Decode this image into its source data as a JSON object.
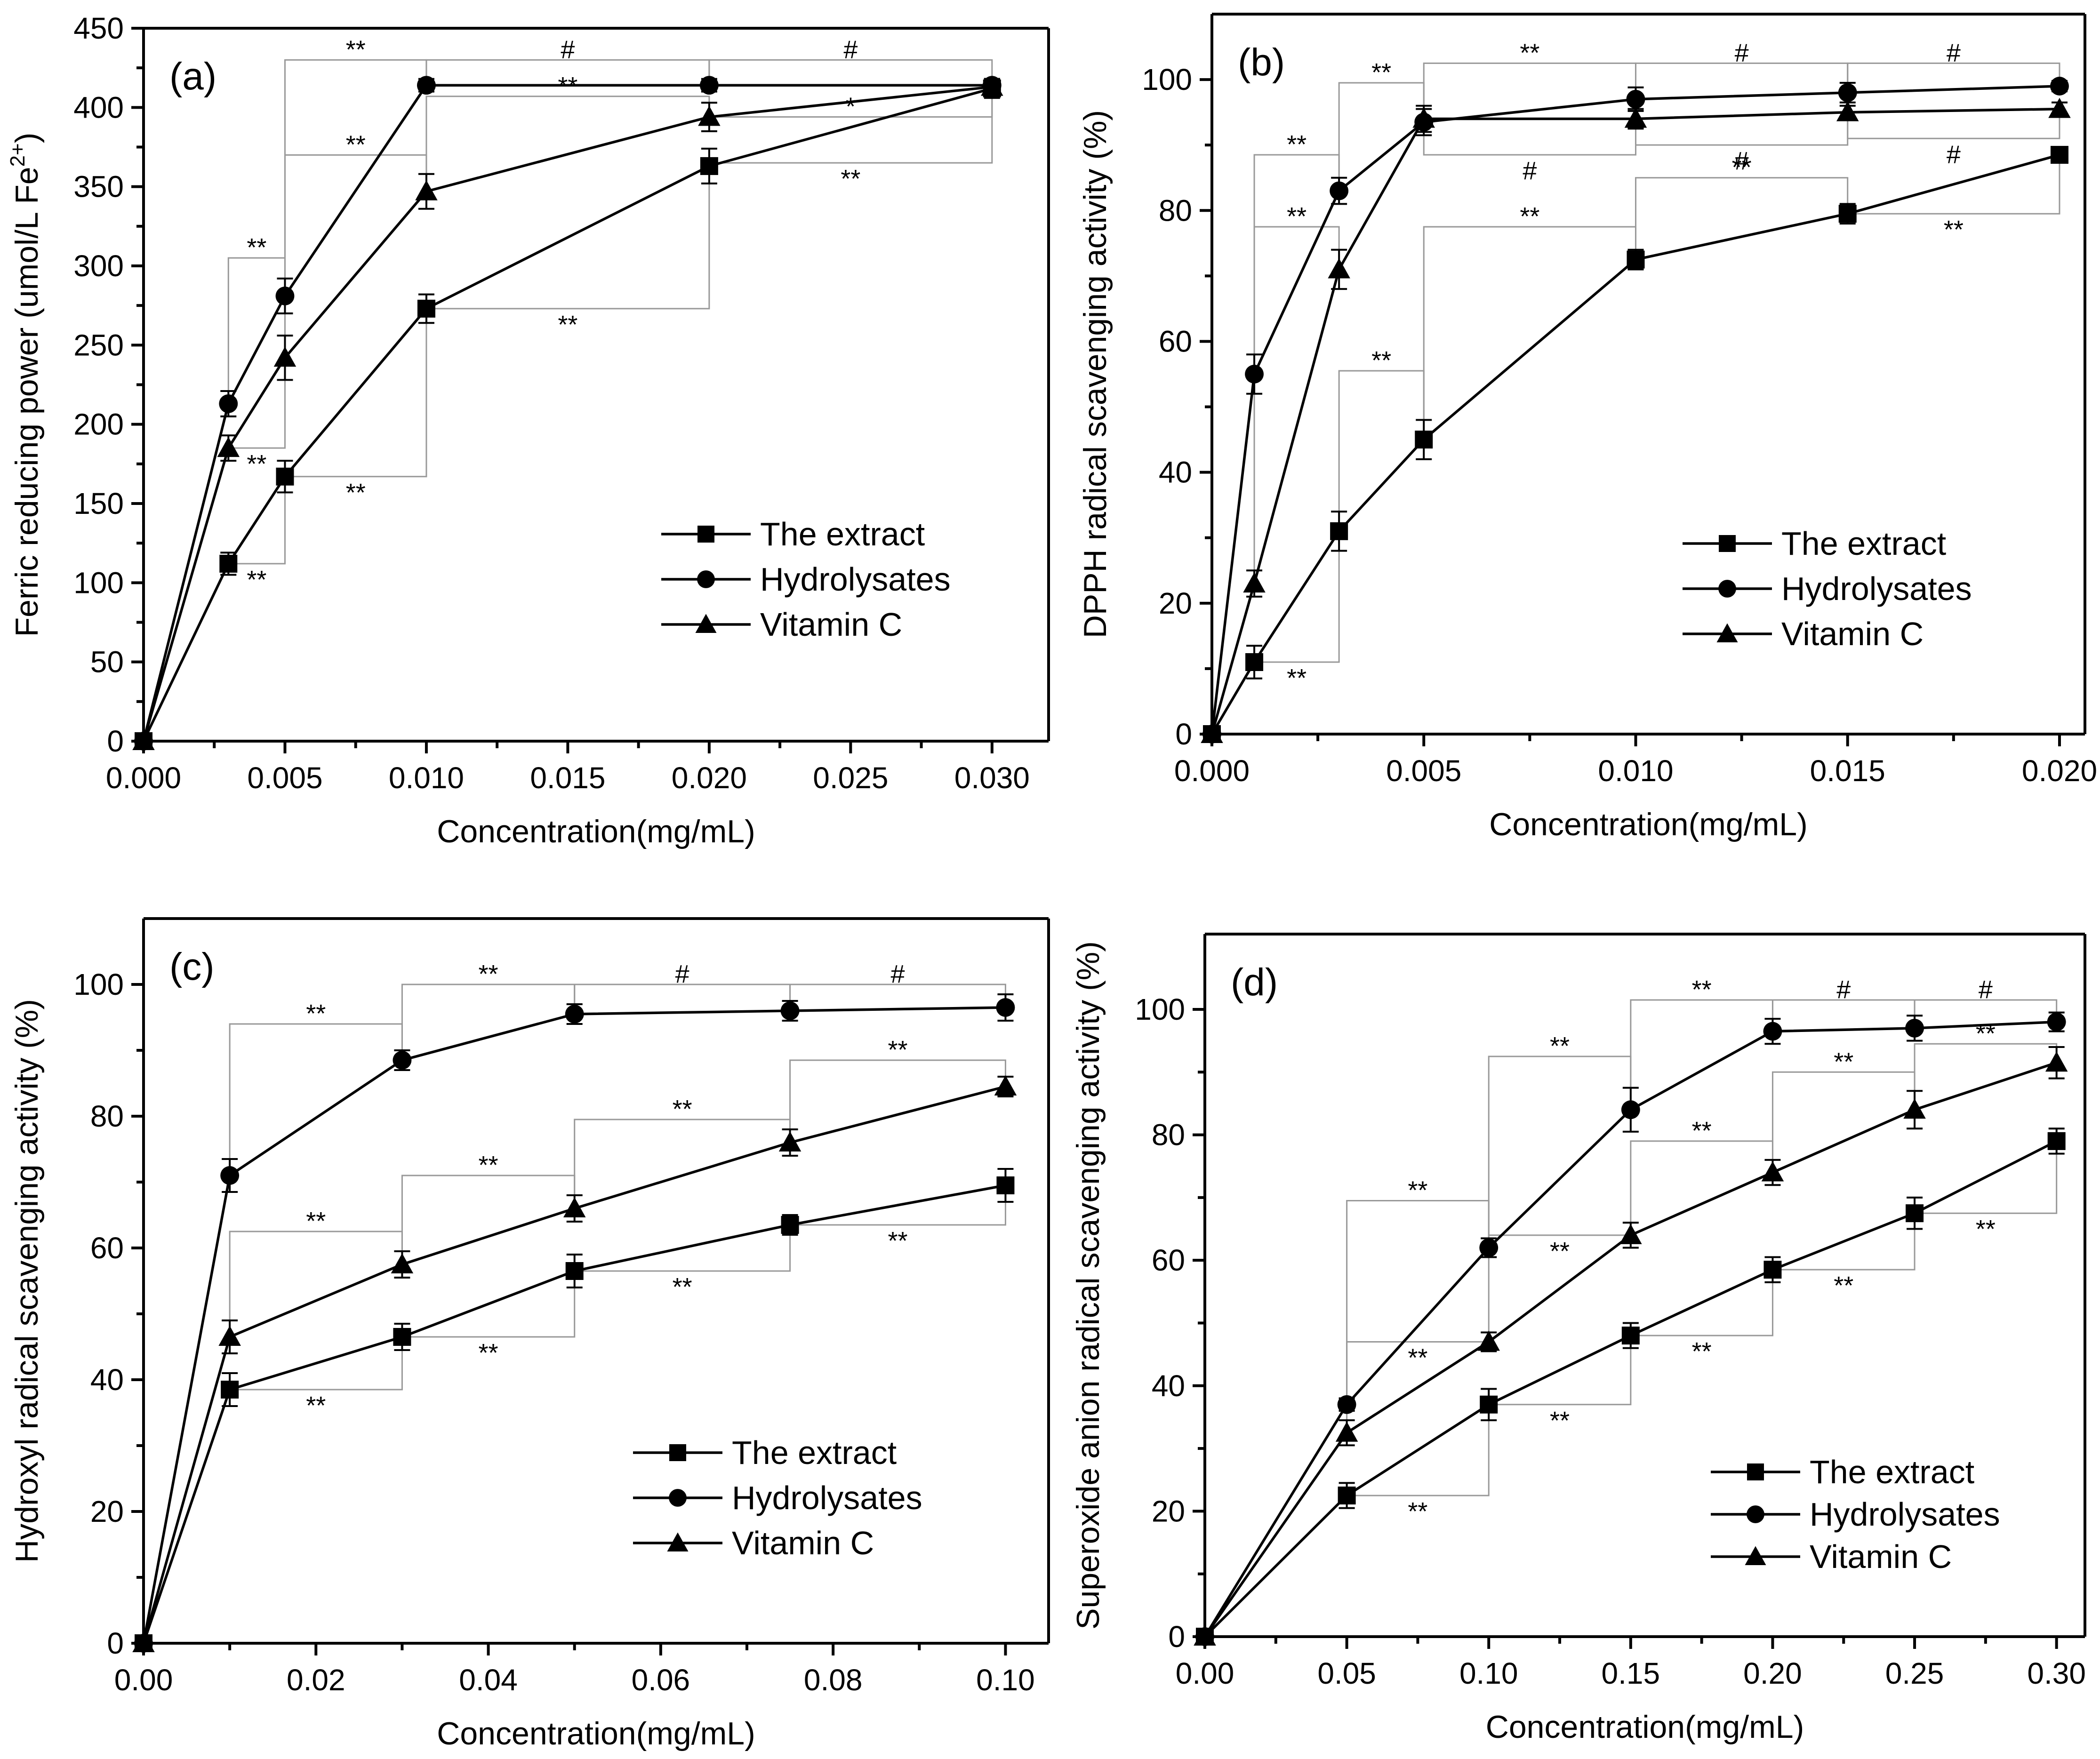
{
  "chart_data": [
    {
      "panel_label": "(a)",
      "type": "line",
      "xlabel": "Concentration(mg/mL)",
      "ylabel_main": "Ferric reducing power (umol/L Fe",
      "ylabel_sup": "2+",
      "ylabel_close": ")",
      "xlim": [
        0,
        0.032
      ],
      "ylim": [
        0,
        450
      ],
      "xticks": [
        0.0,
        0.005,
        0.01,
        0.015,
        0.02,
        0.025,
        0.03
      ],
      "xtick_labels": [
        "0.000",
        "0.005",
        "0.010",
        "0.015",
        "0.020",
        "0.025",
        "0.030"
      ],
      "yticks": [
        0,
        50,
        100,
        150,
        200,
        250,
        300,
        350,
        400,
        450
      ],
      "ytick_labels": [
        "0",
        "50",
        "100",
        "150",
        "200",
        "250",
        "300",
        "350",
        "400",
        "450"
      ],
      "legend_position": "lower-right",
      "series": [
        {
          "name": "The extract",
          "marker": "square",
          "x": [
            0,
            0.003,
            0.005,
            0.01,
            0.02,
            0.03
          ],
          "values": [
            0,
            112,
            167,
            273,
            363,
            412
          ],
          "errors": [
            0,
            7,
            10,
            9,
            11,
            6
          ]
        },
        {
          "name": "Hydrolysates",
          "marker": "circle",
          "x": [
            0,
            0.003,
            0.005,
            0.01,
            0.02,
            0.03
          ],
          "values": [
            0,
            213,
            281,
            414,
            414,
            414
          ],
          "errors": [
            0,
            8,
            11,
            4,
            4,
            4
          ]
        },
        {
          "name": "Vitamin C",
          "marker": "triangle",
          "x": [
            0,
            0.003,
            0.005,
            0.01,
            0.02,
            0.03
          ],
          "values": [
            0,
            185,
            242,
            347,
            394,
            413
          ],
          "errors": [
            0,
            8,
            14,
            11,
            9,
            5
          ]
        }
      ],
      "brackets": [
        {
          "x1": 0.003,
          "x2": 0.005,
          "y1": 213,
          "y2": 281,
          "yb": 305,
          "label": "**",
          "side": "above"
        },
        {
          "x1": 0.005,
          "x2": 0.01,
          "y1": 281,
          "y2": 414,
          "yb": 430,
          "label": "**",
          "side": "above"
        },
        {
          "x1": 0.01,
          "x2": 0.02,
          "y1": 414,
          "y2": 414,
          "yb": 430,
          "label": "#",
          "side": "above"
        },
        {
          "x1": 0.02,
          "x2": 0.03,
          "y1": 414,
          "y2": 414,
          "yb": 430,
          "label": "#",
          "side": "above"
        },
        {
          "x1": 0.005,
          "x2": 0.01,
          "y1": 242,
          "y2": 347,
          "yb": 370,
          "label": "**",
          "side": "above"
        },
        {
          "x1": 0.01,
          "x2": 0.02,
          "y1": 347,
          "y2": 394,
          "yb": 407,
          "label": "**",
          "side": "above"
        },
        {
          "x1": 0.02,
          "x2": 0.03,
          "y1": 394,
          "y2": 413,
          "yb": 394,
          "label": "*",
          "side": "above"
        },
        {
          "x1": 0.003,
          "x2": 0.005,
          "y1": 185,
          "y2": 242,
          "yb": 185,
          "label": "**",
          "side": "below"
        },
        {
          "x1": 0.003,
          "x2": 0.005,
          "y1": 112,
          "y2": 167,
          "yb": 112,
          "label": "**",
          "side": "below"
        },
        {
          "x1": 0.005,
          "x2": 0.01,
          "y1": 167,
          "y2": 273,
          "yb": 167,
          "label": "**",
          "side": "below"
        },
        {
          "x1": 0.01,
          "x2": 0.02,
          "y1": 273,
          "y2": 363,
          "yb": 273,
          "label": "**",
          "side": "below"
        },
        {
          "x1": 0.02,
          "x2": 0.03,
          "y1": 363,
          "y2": 412,
          "yb": 365,
          "label": "**",
          "side": "below"
        }
      ]
    },
    {
      "panel_label": "(b)",
      "type": "line",
      "xlabel": "Concentration(mg/mL)",
      "ylabel_main": "DPPH radical scavenging activity (%)",
      "ylabel_sup": "",
      "ylabel_close": "",
      "xlim": [
        0,
        0.0206
      ],
      "ylim": [
        0,
        110
      ],
      "xticks": [
        0.0,
        0.005,
        0.01,
        0.015,
        0.02
      ],
      "xtick_labels": [
        "0.000",
        "0.005",
        "0.010",
        "0.015",
        "0.020"
      ],
      "yticks": [
        0,
        20,
        40,
        60,
        80,
        100
      ],
      "ytick_labels": [
        "0",
        "20",
        "40",
        "60",
        "80",
        "100"
      ],
      "legend_position": "lower-right",
      "series": [
        {
          "name": "The extract",
          "marker": "square",
          "x": [
            0,
            0.001,
            0.003,
            0.005,
            0.01,
            0.015,
            0.02
          ],
          "values": [
            0,
            11,
            31,
            45,
            72.5,
            79.5,
            88.5
          ],
          "errors": [
            0,
            2.5,
            3,
            3,
            1.5,
            1.5,
            0.5
          ]
        },
        {
          "name": "Hydrolysates",
          "marker": "circle",
          "x": [
            0,
            0.001,
            0.003,
            0.005,
            0.01,
            0.015,
            0.02
          ],
          "values": [
            0,
            55,
            83,
            93.5,
            97,
            98,
            99
          ],
          "errors": [
            0,
            3,
            2,
            2,
            1.8,
            1.5,
            0.8
          ]
        },
        {
          "name": "Vitamin C",
          "marker": "triangle",
          "x": [
            0,
            0.001,
            0.003,
            0.005,
            0.01,
            0.015,
            0.02
          ],
          "values": [
            0,
            23,
            71,
            94,
            94,
            95,
            95.5
          ],
          "errors": [
            0,
            2,
            3,
            2,
            1.5,
            1,
            1
          ]
        }
      ],
      "brackets": [
        {
          "x1": 0.003,
          "x2": 0.005,
          "y1": 83,
          "y2": 93.5,
          "yb": 99.5,
          "label": "**",
          "side": "above"
        },
        {
          "x1": 0.005,
          "x2": 0.01,
          "y1": 93.5,
          "y2": 97,
          "yb": 102.5,
          "label": "**",
          "side": "above"
        },
        {
          "x1": 0.01,
          "x2": 0.015,
          "y1": 97,
          "y2": 98,
          "yb": 102.5,
          "label": "#",
          "side": "above"
        },
        {
          "x1": 0.015,
          "x2": 0.02,
          "y1": 98,
          "y2": 99,
          "yb": 102.5,
          "label": "#",
          "side": "above"
        },
        {
          "x1": 0.001,
          "x2": 0.003,
          "y1": 55,
          "y2": 83,
          "yb": 88.5,
          "label": "**",
          "side": "above"
        },
        {
          "x1": 0.001,
          "x2": 0.003,
          "y1": 23,
          "y2": 71,
          "yb": 77.5,
          "label": "**",
          "side": "above"
        },
        {
          "x1": 0.005,
          "x2": 0.01,
          "y1": 94,
          "y2": 94,
          "yb": 88.5,
          "label": "#",
          "side": "below"
        },
        {
          "x1": 0.01,
          "x2": 0.015,
          "y1": 94,
          "y2": 95,
          "yb": 90,
          "label": "#",
          "side": "below"
        },
        {
          "x1": 0.015,
          "x2": 0.02,
          "y1": 95,
          "y2": 95.5,
          "yb": 91,
          "label": "#",
          "side": "below"
        },
        {
          "x1": 0.01,
          "x2": 0.015,
          "y1": 72.5,
          "y2": 79.5,
          "yb": 85,
          "label": "**",
          "side": "above"
        },
        {
          "x1": 0.015,
          "x2": 0.02,
          "y1": 79.5,
          "y2": 88.5,
          "yb": 79.5,
          "label": "**",
          "side": "below"
        },
        {
          "x1": 0.005,
          "x2": 0.01,
          "y1": 45,
          "y2": 72.5,
          "yb": 77.5,
          "label": "**",
          "side": "above"
        },
        {
          "x1": 0.003,
          "x2": 0.005,
          "y1": 31,
          "y2": 45,
          "yb": 55.5,
          "label": "**",
          "side": "above"
        },
        {
          "x1": 0.001,
          "x2": 0.003,
          "y1": 11,
          "y2": 31,
          "yb": 11,
          "label": "**",
          "side": "below"
        }
      ]
    },
    {
      "panel_label": "(c)",
      "type": "line",
      "xlabel": "Concentration(mg/mL)",
      "ylabel_main": "Hydroxyl radical scavenging activity (%)",
      "ylabel_sup": "",
      "ylabel_close": "",
      "xlim": [
        0,
        0.105
      ],
      "ylim": [
        0,
        110
      ],
      "xticks": [
        0.0,
        0.02,
        0.04,
        0.06,
        0.08,
        0.1
      ],
      "xtick_labels": [
        "0.00",
        "0.02",
        "0.04",
        "0.06",
        "0.08",
        "0.10"
      ],
      "yticks": [
        0,
        20,
        40,
        60,
        80,
        100
      ],
      "ytick_labels": [
        "0",
        "20",
        "40",
        "60",
        "80",
        "100"
      ],
      "legend_position": "lower-right",
      "series": [
        {
          "name": "The extract",
          "marker": "square",
          "x": [
            0,
            0.01,
            0.03,
            0.05,
            0.075,
            0.1
          ],
          "values": [
            0,
            38.5,
            46.5,
            56.5,
            63.5,
            69.5
          ],
          "errors": [
            0,
            2.5,
            2,
            2.5,
            1.5,
            2.5
          ]
        },
        {
          "name": "Hydrolysates",
          "marker": "circle",
          "x": [
            0,
            0.01,
            0.03,
            0.05,
            0.075,
            0.1
          ],
          "values": [
            0,
            71,
            88.5,
            95.5,
            96,
            96.5
          ],
          "errors": [
            0,
            2.5,
            1.5,
            1.5,
            1.5,
            2
          ]
        },
        {
          "name": "Vitamin C",
          "marker": "triangle",
          "x": [
            0,
            0.01,
            0.03,
            0.05,
            0.075,
            0.1
          ],
          "values": [
            0,
            46.5,
            57.5,
            66,
            76,
            84.5
          ],
          "errors": [
            0,
            2.5,
            2,
            2,
            2,
            1.5
          ]
        }
      ],
      "brackets": [
        {
          "x1": 0.01,
          "x2": 0.03,
          "y1": 71,
          "y2": 88.5,
          "yb": 94,
          "label": "**",
          "side": "above"
        },
        {
          "x1": 0.03,
          "x2": 0.05,
          "y1": 88.5,
          "y2": 95.5,
          "yb": 100,
          "label": "**",
          "side": "above"
        },
        {
          "x1": 0.05,
          "x2": 0.075,
          "y1": 95.5,
          "y2": 96,
          "yb": 100,
          "label": "#",
          "side": "above"
        },
        {
          "x1": 0.075,
          "x2": 0.1,
          "y1": 96,
          "y2": 96.5,
          "yb": 100,
          "label": "#",
          "side": "above"
        },
        {
          "x1": 0.075,
          "x2": 0.1,
          "y1": 76,
          "y2": 84.5,
          "yb": 88.5,
          "label": "**",
          "side": "above"
        },
        {
          "x1": 0.05,
          "x2": 0.075,
          "y1": 66,
          "y2": 76,
          "yb": 79.5,
          "label": "**",
          "side": "above"
        },
        {
          "x1": 0.03,
          "x2": 0.05,
          "y1": 57.5,
          "y2": 66,
          "yb": 71,
          "label": "**",
          "side": "above"
        },
        {
          "x1": 0.01,
          "x2": 0.03,
          "y1": 46.5,
          "y2": 57.5,
          "yb": 62.5,
          "label": "**",
          "side": "above"
        },
        {
          "x1": 0.075,
          "x2": 0.1,
          "y1": 63.5,
          "y2": 69.5,
          "yb": 63.5,
          "label": "**",
          "side": "below"
        },
        {
          "x1": 0.05,
          "x2": 0.075,
          "y1": 56.5,
          "y2": 63.5,
          "yb": 56.5,
          "label": "**",
          "side": "below"
        },
        {
          "x1": 0.03,
          "x2": 0.05,
          "y1": 46.5,
          "y2": 56.5,
          "yb": 46.5,
          "label": "**",
          "side": "below"
        },
        {
          "x1": 0.01,
          "x2": 0.03,
          "y1": 38.5,
          "y2": 46.5,
          "yb": 38.5,
          "label": "**",
          "side": "below"
        }
      ]
    },
    {
      "panel_label": "(d)",
      "type": "line",
      "xlabel": "Concentration(mg/mL)",
      "ylabel_main": "Superoxide anion radical scavenging activity (%)",
      "ylabel_sup": "",
      "ylabel_close": "",
      "xlim": [
        0,
        0.31
      ],
      "ylim": [
        0,
        112
      ],
      "xticks": [
        0.0,
        0.05,
        0.1,
        0.15,
        0.2,
        0.25,
        0.3
      ],
      "xtick_labels": [
        "0.00",
        "0.05",
        "0.10",
        "0.15",
        "0.20",
        "0.25",
        "0.30"
      ],
      "yticks": [
        0,
        20,
        40,
        60,
        80,
        100
      ],
      "ytick_labels": [
        "0",
        "20",
        "40",
        "60",
        "80",
        "100"
      ],
      "legend_position": "lower-right",
      "series": [
        {
          "name": "The extract",
          "marker": "square",
          "x": [
            0,
            0.05,
            0.1,
            0.15,
            0.2,
            0.25,
            0.3
          ],
          "values": [
            0,
            22.5,
            37,
            48,
            58.5,
            67.5,
            79
          ],
          "errors": [
            0,
            2,
            2.5,
            2,
            2,
            2.5,
            2
          ]
        },
        {
          "name": "Hydrolysates",
          "marker": "circle",
          "x": [
            0,
            0.05,
            0.1,
            0.15,
            0.2,
            0.25,
            0.3
          ],
          "values": [
            0,
            37,
            62,
            84,
            96.5,
            97,
            98
          ],
          "errors": [
            0,
            1,
            1.5,
            3.5,
            2,
            2,
            1.5
          ]
        },
        {
          "name": "Vitamin C",
          "marker": "triangle",
          "x": [
            0,
            0.05,
            0.1,
            0.15,
            0.2,
            0.25,
            0.3
          ],
          "values": [
            0,
            32.5,
            47,
            64,
            74,
            84,
            91.5
          ],
          "errors": [
            0,
            2,
            1.5,
            2,
            2,
            3,
            2.5
          ]
        }
      ],
      "brackets": [
        {
          "x1": 0.15,
          "x2": 0.2,
          "y1": 84,
          "y2": 96.5,
          "yb": 101.5,
          "label": "**",
          "side": "above"
        },
        {
          "x1": 0.2,
          "x2": 0.25,
          "y1": 96.5,
          "y2": 97,
          "yb": 101.5,
          "label": "#",
          "side": "above"
        },
        {
          "x1": 0.25,
          "x2": 0.3,
          "y1": 97,
          "y2": 98,
          "yb": 101.5,
          "label": "#",
          "side": "above"
        },
        {
          "x1": 0.1,
          "x2": 0.15,
          "y1": 62,
          "y2": 84,
          "yb": 92.5,
          "label": "**",
          "side": "above"
        },
        {
          "x1": 0.2,
          "x2": 0.25,
          "y1": 74,
          "y2": 84,
          "yb": 90,
          "label": "**",
          "side": "above"
        },
        {
          "x1": 0.25,
          "x2": 0.3,
          "y1": 84,
          "y2": 91.5,
          "yb": 94.5,
          "label": "**",
          "side": "above"
        },
        {
          "x1": 0.15,
          "x2": 0.2,
          "y1": 64,
          "y2": 74,
          "yb": 79,
          "label": "**",
          "side": "above"
        },
        {
          "x1": 0.05,
          "x2": 0.1,
          "y1": 37,
          "y2": 62,
          "yb": 69.5,
          "label": "**",
          "side": "above"
        },
        {
          "x1": 0.1,
          "x2": 0.15,
          "y1": 47,
          "y2": 64,
          "yb": 64,
          "label": "**",
          "side": "below"
        },
        {
          "x1": 0.05,
          "x2": 0.1,
          "y1": 32.5,
          "y2": 47,
          "yb": 47,
          "label": "**",
          "side": "below"
        },
        {
          "x1": 0.25,
          "x2": 0.3,
          "y1": 67.5,
          "y2": 79,
          "yb": 67.5,
          "label": "**",
          "side": "below"
        },
        {
          "x1": 0.2,
          "x2": 0.25,
          "y1": 58.5,
          "y2": 67.5,
          "yb": 58.5,
          "label": "**",
          "side": "below"
        },
        {
          "x1": 0.15,
          "x2": 0.2,
          "y1": 48,
          "y2": 58.5,
          "yb": 48,
          "label": "**",
          "side": "below"
        },
        {
          "x1": 0.1,
          "x2": 0.15,
          "y1": 37,
          "y2": 48,
          "yb": 37,
          "label": "**",
          "side": "below"
        },
        {
          "x1": 0.05,
          "x2": 0.1,
          "y1": 22.5,
          "y2": 37,
          "yb": 22.5,
          "label": "**",
          "side": "below"
        }
      ]
    }
  ]
}
